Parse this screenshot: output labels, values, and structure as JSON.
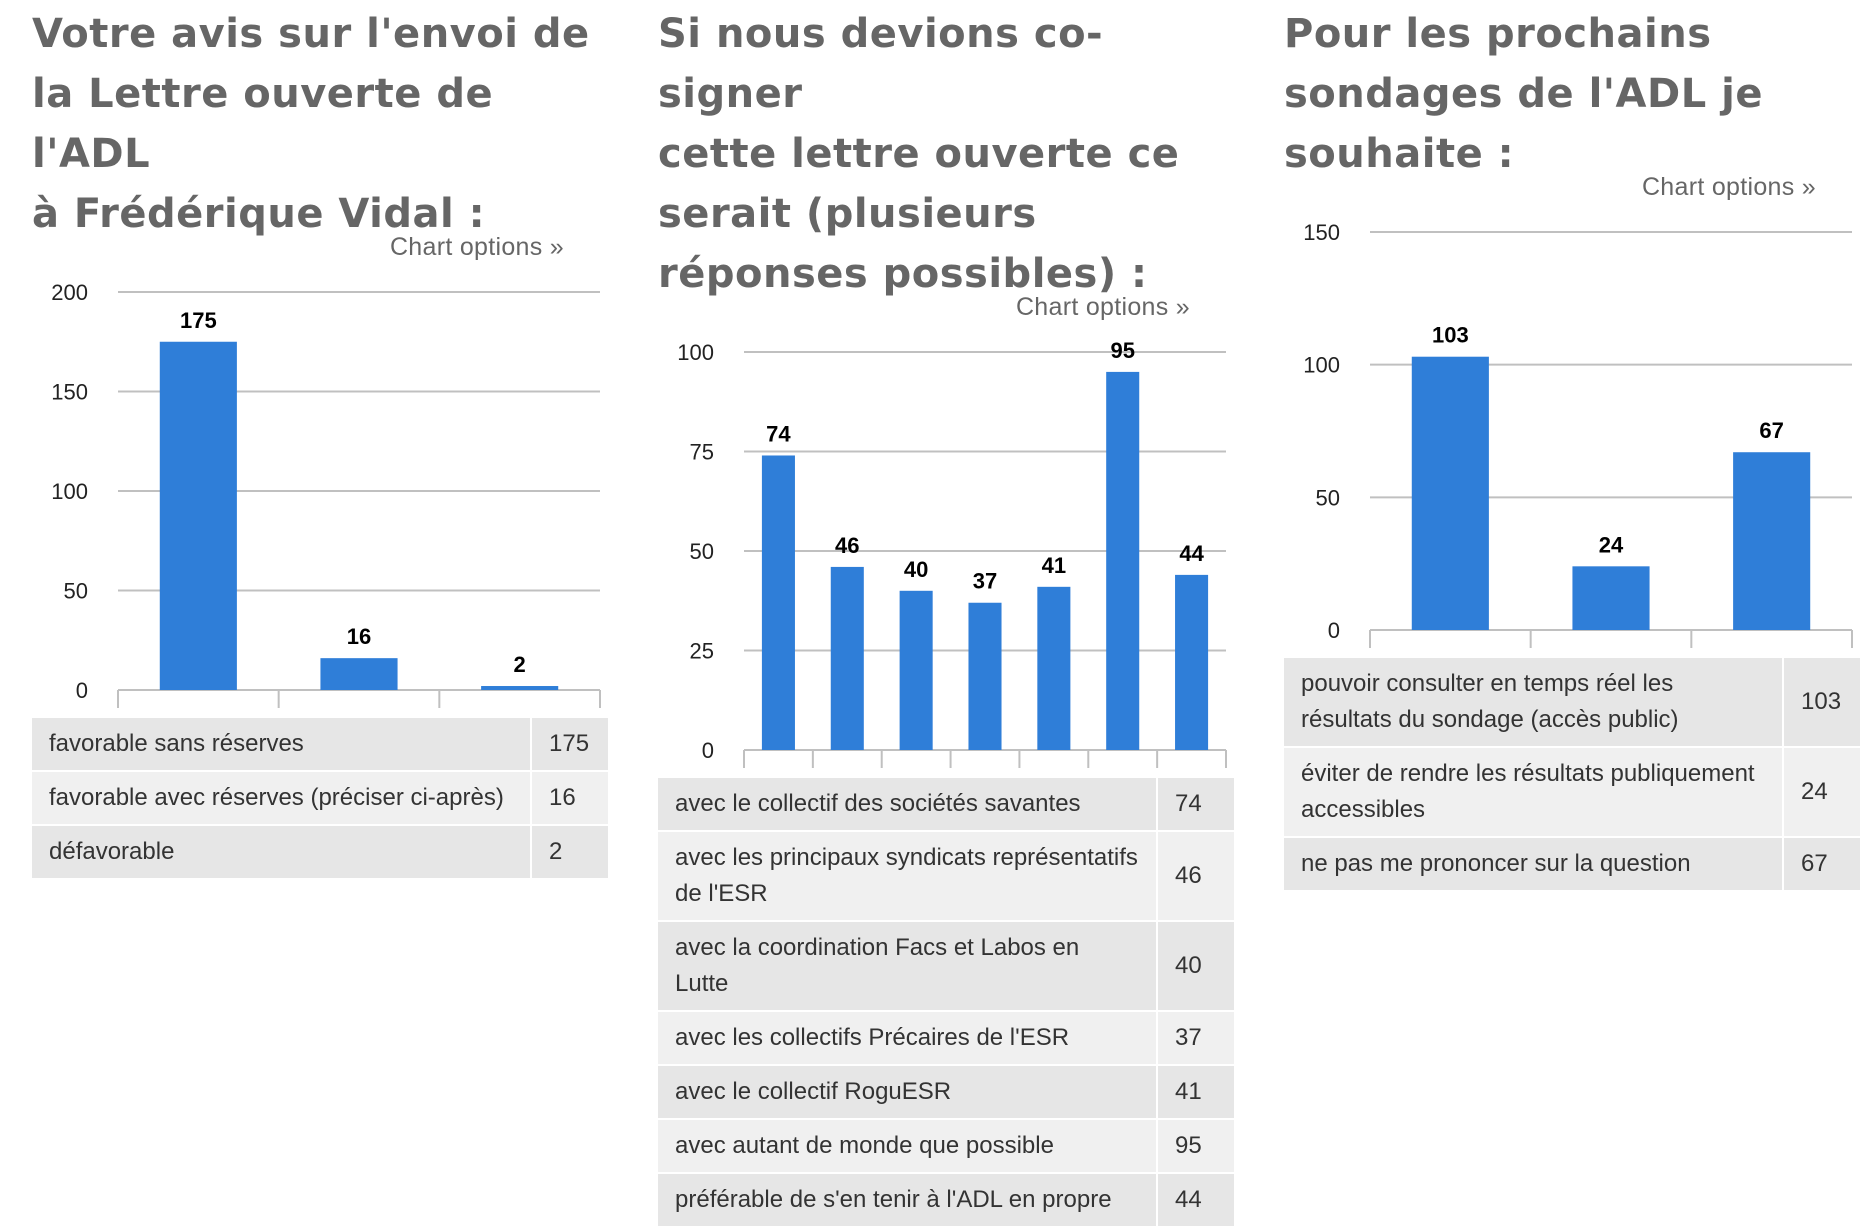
{
  "chart_options_label": "Chart options »",
  "colors": {
    "bar": "#2f7ed8",
    "grid": "#c0c0c0",
    "title": "#666666"
  },
  "chart_data": [
    {
      "type": "bar",
      "title": "Votre avis sur l'envoi de la Lettre ouverte de l'ADL à Frédérique Vidal :",
      "title_lines": [
        "Votre avis sur l'envoi de",
        "la Lettre ouverte de l'ADL",
        "à Frédérique Vidal :"
      ],
      "categories": [
        "favorable sans réserves",
        "favorable avec réserves (préciser ci-après)",
        "défavorable"
      ],
      "values": [
        175,
        16,
        2
      ],
      "ylim": [
        0,
        200
      ],
      "yticks": [
        0,
        50,
        100,
        150,
        200
      ],
      "grid": true,
      "legend": "none",
      "table": [
        {
          "label": "favorable sans réserves",
          "value": "175"
        },
        {
          "label": "favorable avec réserves (préciser ci-après)",
          "value": "16"
        },
        {
          "label": "défavorable",
          "value": "2"
        }
      ]
    },
    {
      "type": "bar",
      "title": "Si nous devions co-signer cette lettre ouverte ce serait (plusieurs réponses possibles) :",
      "title_lines": [
        "Si nous devions co-signer",
        "cette lettre ouverte ce",
        "serait (plusieurs",
        "réponses possibles) :"
      ],
      "categories": [
        "avec le collectif des sociétés savantes",
        "avec les principaux syndicats représentatifs de l'ESR",
        "avec la coordination Facs et Labos en Lutte",
        "avec les collectifs Précaires de l'ESR",
        "avec le collectif RoguESR",
        "avec autant de monde que possible",
        "préférable de s'en tenir à l'ADL en propre"
      ],
      "values": [
        74,
        46,
        40,
        37,
        41,
        95,
        44
      ],
      "ylim": [
        0,
        100
      ],
      "yticks": [
        0,
        25,
        50,
        75,
        100
      ],
      "grid": true,
      "legend": "none",
      "table": [
        {
          "label": "avec le collectif des sociétés savantes",
          "value": "74"
        },
        {
          "label": "avec les principaux syndicats représentatifs de l'ESR",
          "value": "46"
        },
        {
          "label": "avec la coordination Facs et Labos en Lutte",
          "value": "40"
        },
        {
          "label": "avec les collectifs Précaires de l'ESR",
          "value": "37"
        },
        {
          "label": "avec le collectif RoguESR",
          "value": "41"
        },
        {
          "label": "avec autant de monde que possible",
          "value": "95"
        },
        {
          "label": "préférable de s'en tenir à l'ADL en propre",
          "value": "44"
        }
      ]
    },
    {
      "type": "bar",
      "title": "Pour les prochains sondages de l'ADL je souhaite :",
      "title_lines": [
        "Pour les prochains",
        "sondages de l'ADL je",
        "souhaite :"
      ],
      "categories": [
        "pouvoir consulter en temps réel les résultats du sondage (accès public)",
        "éviter de rendre les résultats publiquement accessibles",
        "ne pas me prononcer sur la question"
      ],
      "values": [
        103,
        24,
        67
      ],
      "ylim": [
        0,
        150
      ],
      "yticks": [
        0,
        50,
        100,
        150
      ],
      "grid": true,
      "legend": "none",
      "table": [
        {
          "label": "pouvoir consulter en temps réel les résultats du sondage (accès public)",
          "value": "103"
        },
        {
          "label": "éviter de rendre les résultats publiquement accessibles",
          "value": "24"
        },
        {
          "label": "ne pas me prononcer sur la question",
          "value": "67"
        }
      ]
    }
  ]
}
